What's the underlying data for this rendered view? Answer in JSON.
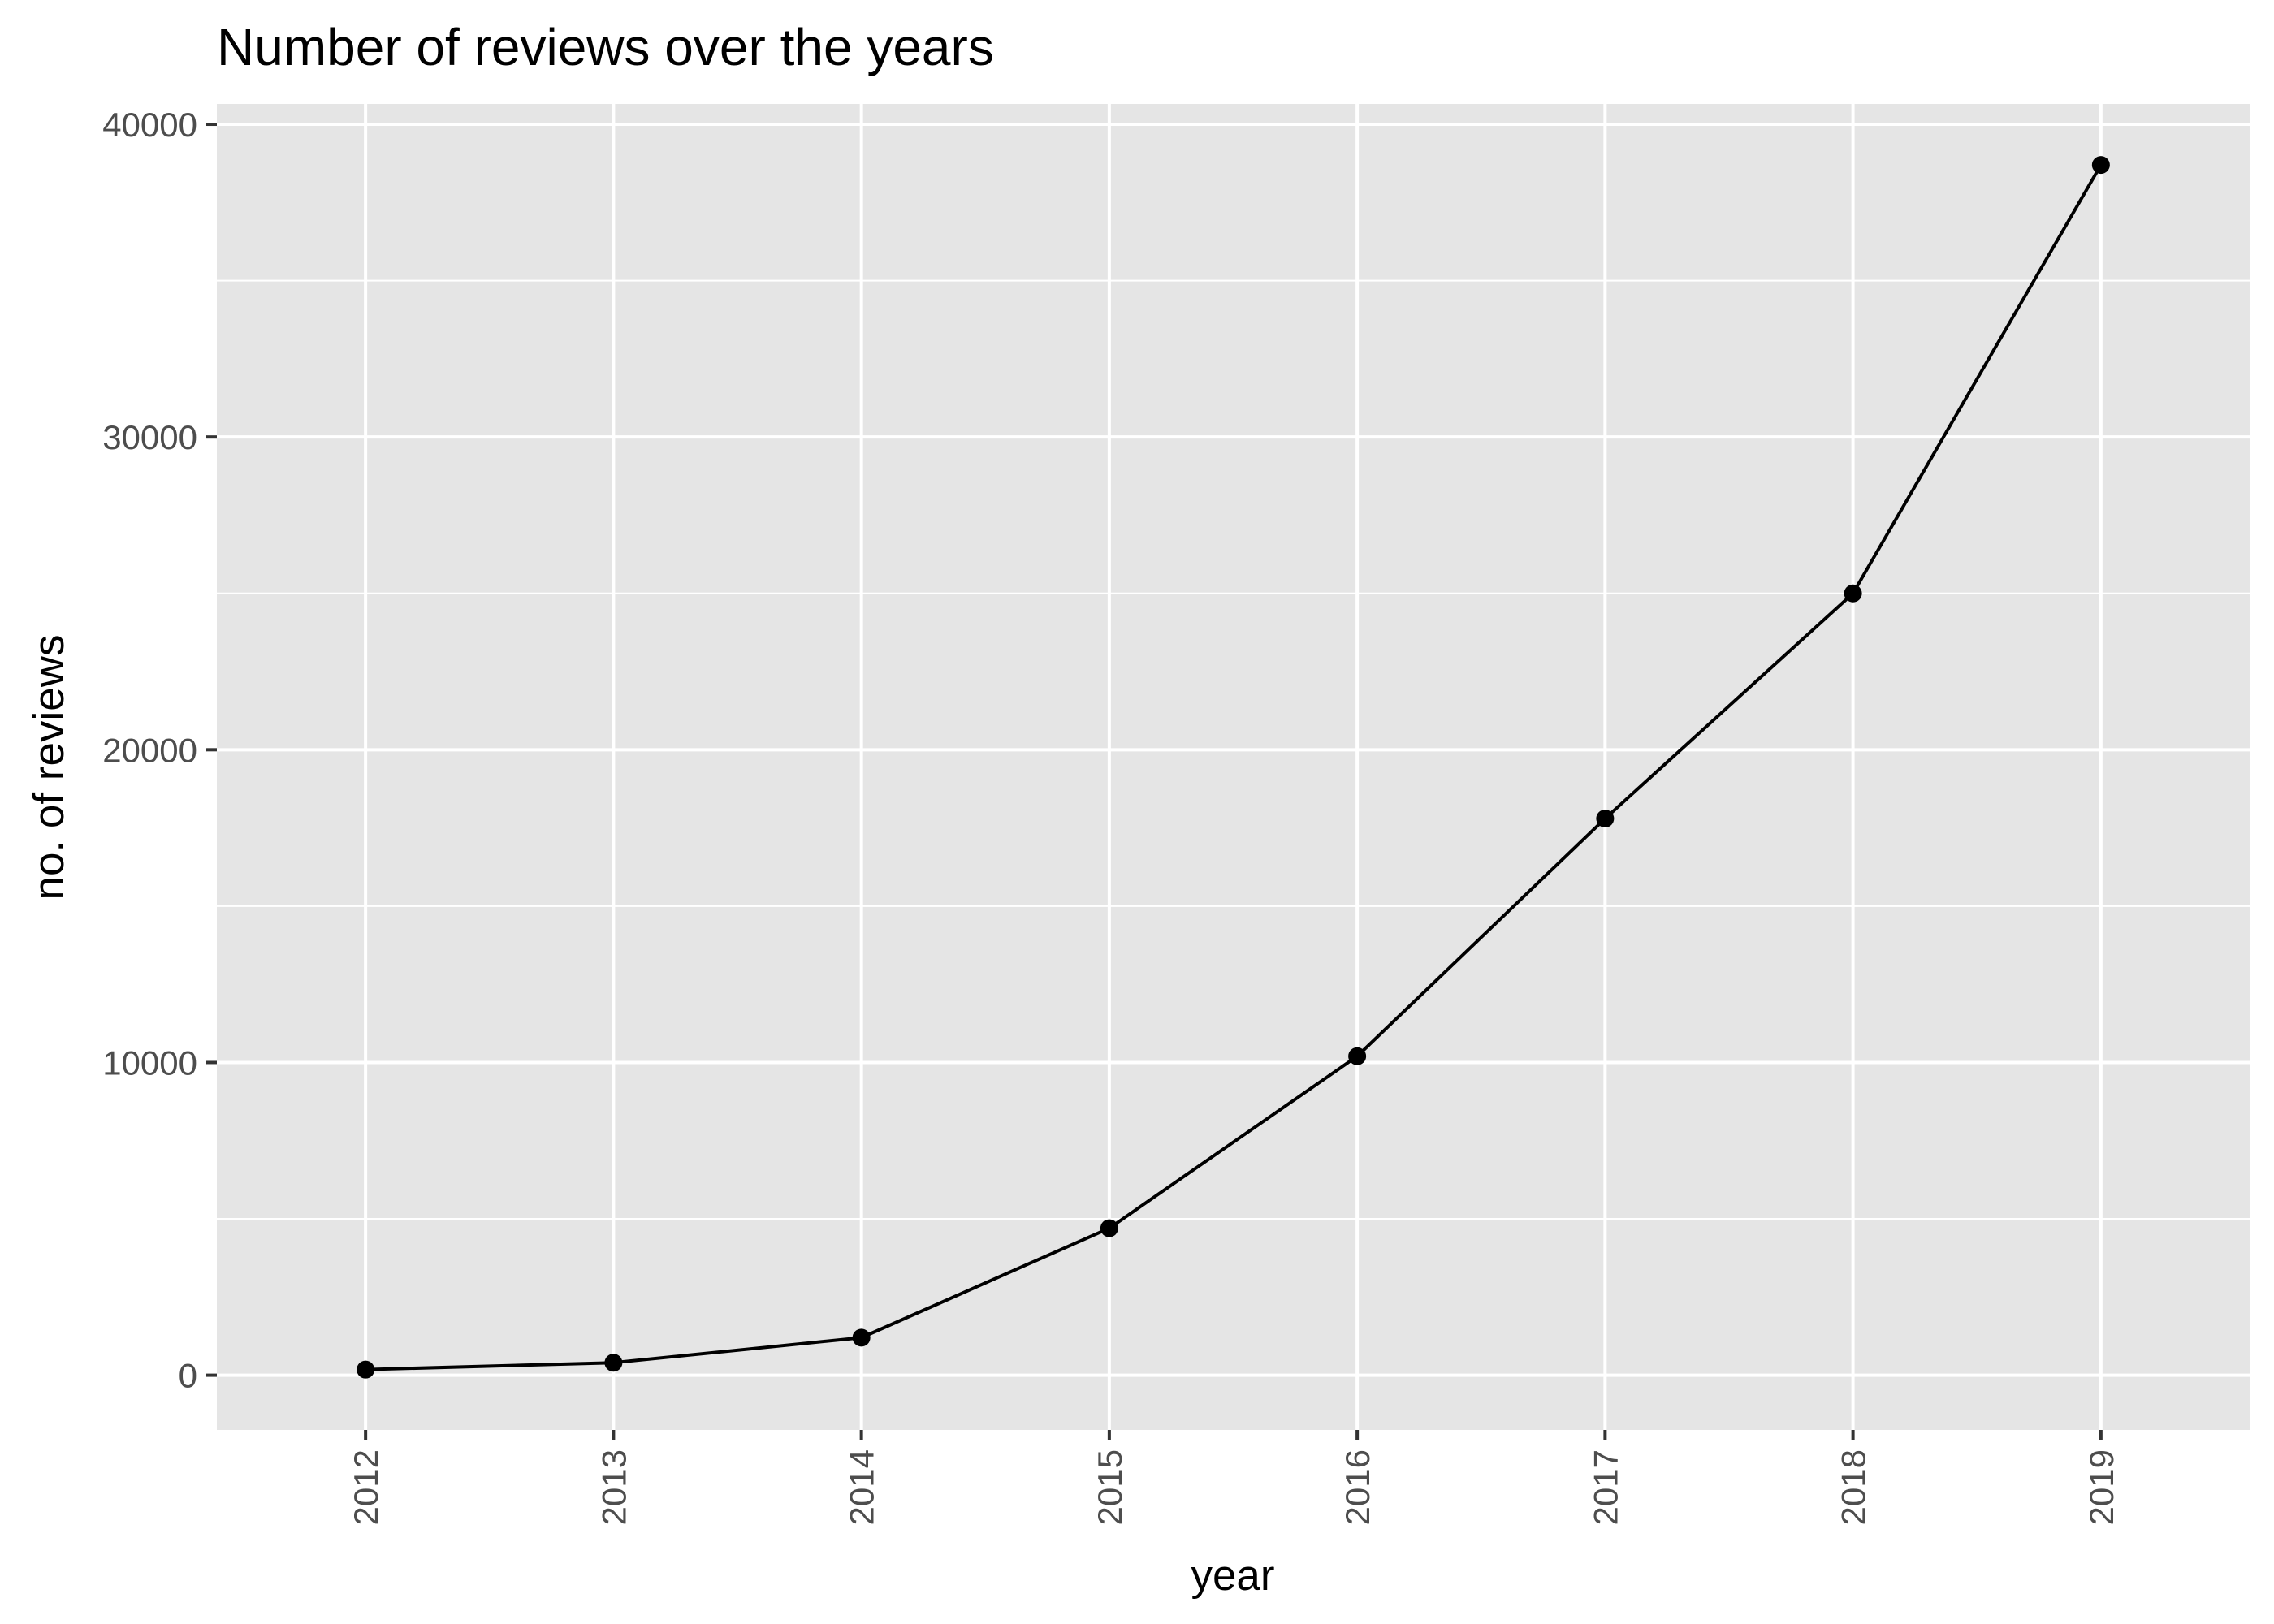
{
  "chart_data": {
    "type": "line",
    "title": "Number of reviews over the years",
    "xlabel": "year",
    "ylabel": "no. of reviews",
    "categories": [
      "2012",
      "2013",
      "2014",
      "2015",
      "2016",
      "2017",
      "2018",
      "2019"
    ],
    "series": [
      {
        "values": [
          180,
          400,
          1200,
          4700,
          10200,
          17800,
          25000,
          38700
        ]
      }
    ],
    "ylim": [
      -1750,
      40650
    ],
    "yticks": [
      0,
      10000,
      20000,
      30000,
      40000
    ],
    "ytick_labels": [
      "0",
      "10000",
      "20000",
      "30000",
      "40000"
    ],
    "grid": true,
    "legend": "none",
    "x_tick_rotation": "vertical",
    "colors": {
      "panel_background": "#e5e5e5",
      "grid": "#ffffff",
      "line": "#000000",
      "point": "#000000",
      "tick_label": "#4d4d4d",
      "axis_tick": "#333333"
    }
  }
}
